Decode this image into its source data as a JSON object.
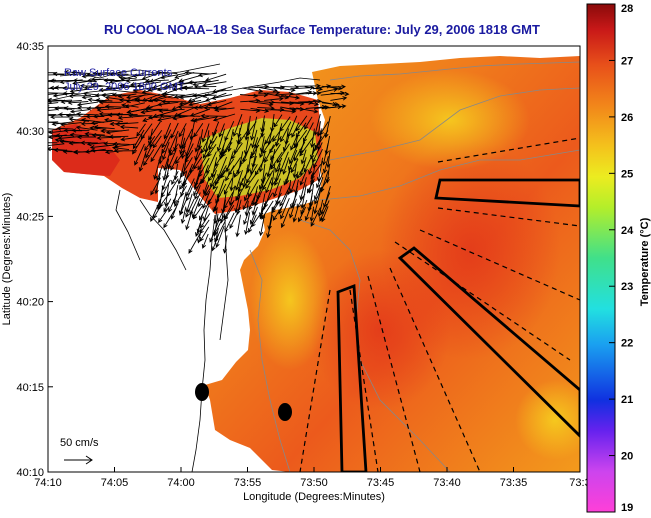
{
  "chart_data": {
    "type": "heatmap",
    "title": "RU COOL  NOAA–18  Sea Surface Temperature:  July 29, 2006 1818 GMT",
    "xlabel": "Longitude (Degrees:Minutes)",
    "ylabel": "Latitude (Degrees:Minutes)",
    "x_ticks": [
      "74:10",
      "74:05",
      "74:00",
      "73:55",
      "73:50",
      "73:45",
      "73:40",
      "73:35",
      "73:3"
    ],
    "y_ticks": [
      "40:35",
      "40:30",
      "40:25",
      "40:20",
      "40:15",
      "40:10"
    ],
    "colorbar": {
      "label": "Temperature (°C)",
      "min": 19,
      "max": 28,
      "ticks": [
        "28",
        "27",
        "26",
        "25",
        "24",
        "23",
        "22",
        "21",
        "20",
        "19"
      ]
    },
    "annotations": {
      "vectors_title": "Raw Surface Currents",
      "vectors_date": "July 29, 2006 1800 GMT",
      "scale_label": "50 cm/s"
    }
  },
  "colors": {
    "title": "#1a1aa0",
    "warm": "#e8401a",
    "mid": "#f3a01e",
    "cool_green": "#9fe040"
  }
}
